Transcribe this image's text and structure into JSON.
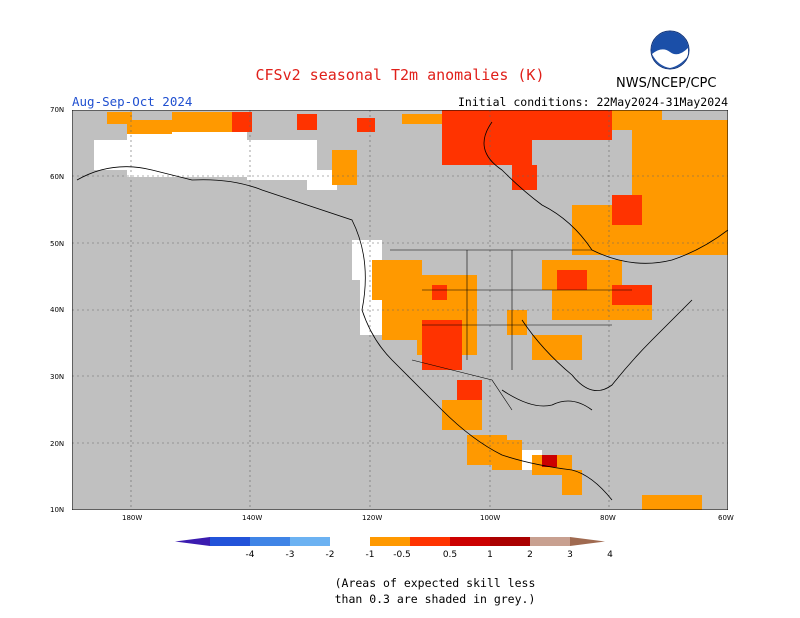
{
  "header": {
    "title": "CFSv2 seasonal T2m anomalies (K)",
    "agency": "NWS/NCEP/CPC",
    "logo_text": "NOAA",
    "season": "Aug-Sep-Oct 2024",
    "initial_conditions": "Initial conditions: 22May2024-31May2024"
  },
  "map": {
    "region": "North America",
    "lat_labels": [
      "70N",
      "60N",
      "50N",
      "40N",
      "30N",
      "20N",
      "10N"
    ],
    "lon_labels": [
      "180W",
      "140W",
      "120W",
      "100W",
      "80W",
      "60W"
    ],
    "low_skill_color": "#c0c0c0"
  },
  "legend": {
    "labels": [
      "-4",
      "-3",
      "-2",
      "-1",
      "-0.5",
      "0.5",
      "1",
      "2",
      "3",
      "4"
    ],
    "colors": [
      "#3b1cb0",
      "#2253d9",
      "#3f84e6",
      "#6cb2f2",
      "#ffffff",
      "#ff9900",
      "#ff3300",
      "#cc0000",
      "#aa0000",
      "#c8a090",
      "#a06a50"
    ]
  },
  "footnote": {
    "line1": "(Areas of expected skill less",
    "line2": "than 0.3 are shaded in grey.)"
  }
}
